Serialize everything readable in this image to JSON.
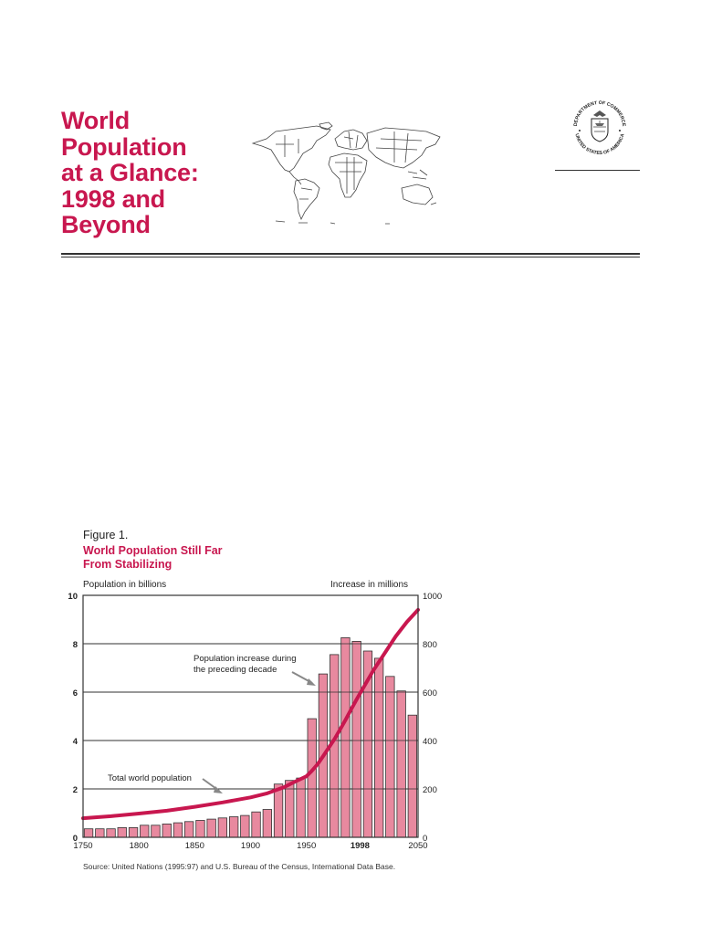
{
  "document": {
    "title_lines": [
      "World",
      "Population",
      "at a Glance:",
      "1998 and",
      "Beyond"
    ],
    "seal": {
      "text_top": "DEPARTMENT OF COMMERCE",
      "text_bottom": "UNITED STATES OF AMERICA"
    },
    "map_icon": "world-map-outline"
  },
  "figure": {
    "label": "Figure 1.",
    "title_lines": [
      "World Population Still Far",
      "From Stabilizing"
    ],
    "left_axis_title": "Population in billions",
    "right_axis_title": "Increase in millions",
    "source": "Source: United Nations (1995:97) and U.S. Bureau of the Census, International Data Base.",
    "annotations": {
      "bars": [
        "Population increase during",
        "the preceding decade"
      ],
      "line": "Total world population"
    },
    "colors": {
      "title": "#c8174f",
      "line": "#c8174f",
      "bar_fill": "#e8899f",
      "bar_stroke": "#333333",
      "grid": "#333333"
    }
  },
  "chart_data": {
    "type": "bar",
    "title": "World Population Still Far From Stabilizing",
    "xlabel": "",
    "ylabel": "Population in billions",
    "ylabel_right": "Increase in millions",
    "x_ticks": [
      "1750",
      "1800",
      "1850",
      "1900",
      "1950",
      "1998",
      "2050"
    ],
    "y_ticks_left": [
      0,
      2,
      4,
      6,
      8,
      10
    ],
    "y_ticks_right": [
      0,
      200,
      400,
      600,
      800,
      1000
    ],
    "ylim": [
      0,
      10
    ],
    "ylim_right": [
      0,
      1000
    ],
    "xlim": [
      1750,
      2050
    ],
    "grid": true,
    "legend": "annotations (no legend box)",
    "series": [
      {
        "name": "Population increase during the preceding decade",
        "type": "bar",
        "axis": "right",
        "unit": "millions",
        "x": [
          1760,
          1770,
          1780,
          1790,
          1800,
          1810,
          1820,
          1830,
          1840,
          1850,
          1860,
          1870,
          1880,
          1890,
          1900,
          1910,
          1920,
          1930,
          1940,
          1950,
          1960,
          1970,
          1980,
          1990,
          2000,
          2010,
          2020,
          2030,
          2040,
          2050
        ],
        "values": [
          35,
          35,
          35,
          40,
          40,
          50,
          50,
          55,
          60,
          65,
          70,
          75,
          80,
          85,
          90,
          105,
          115,
          220,
          235,
          245,
          490,
          675,
          755,
          825,
          810,
          770,
          740,
          665,
          605,
          505
        ]
      },
      {
        "name": "Total world population",
        "type": "line",
        "axis": "left",
        "unit": "billions",
        "x": [
          1750,
          1775,
          1800,
          1825,
          1850,
          1875,
          1900,
          1915,
          1930,
          1940,
          1950,
          1955,
          1960,
          1965,
          1970,
          1975,
          1980,
          1985,
          1990,
          1995,
          2000,
          2010,
          2020,
          2030,
          2040,
          2050
        ],
        "values": [
          0.79,
          0.87,
          0.98,
          1.1,
          1.26,
          1.44,
          1.65,
          1.82,
          2.07,
          2.3,
          2.52,
          2.75,
          3.02,
          3.35,
          3.7,
          4.05,
          4.44,
          4.85,
          5.28,
          5.7,
          6.1,
          6.9,
          7.6,
          8.3,
          8.9,
          9.4
        ]
      }
    ]
  }
}
